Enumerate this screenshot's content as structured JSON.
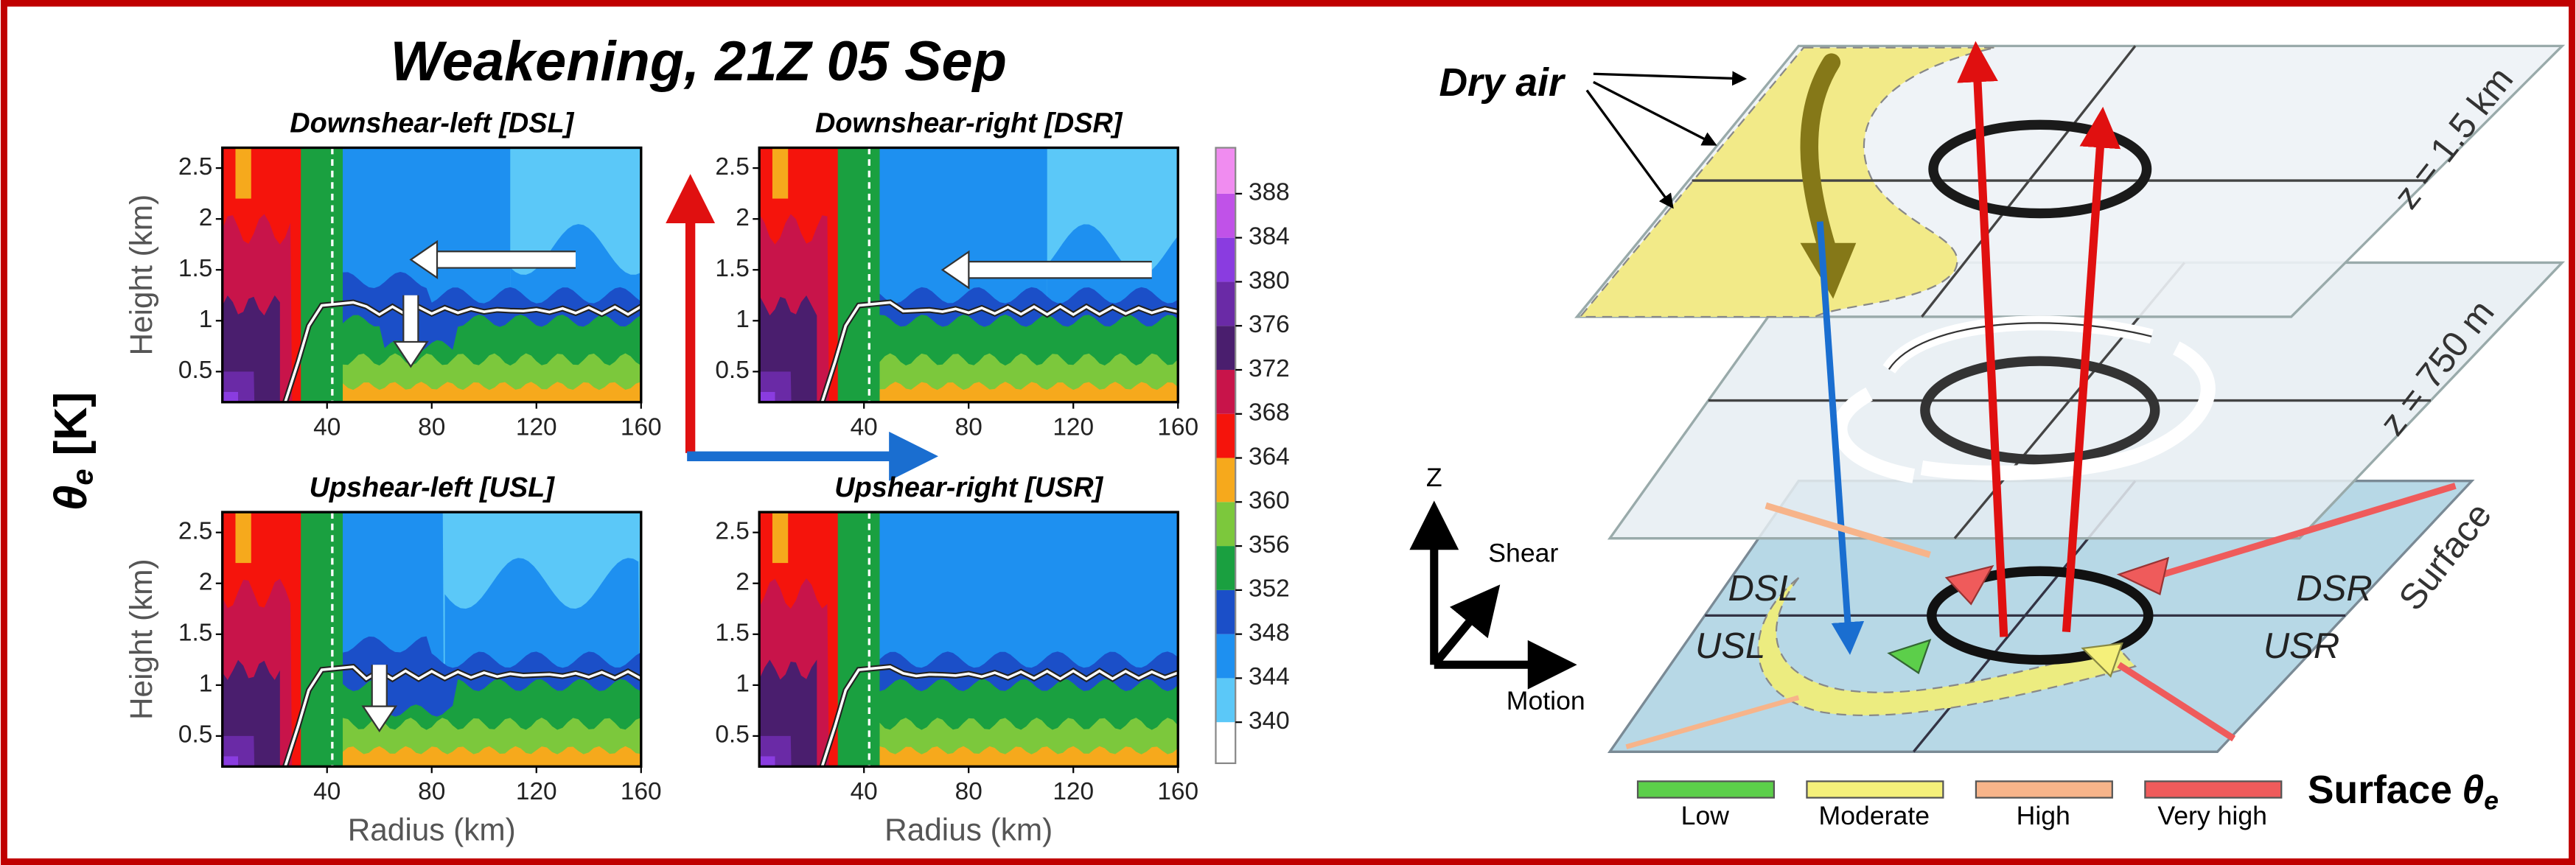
{
  "title": "Weakening, 21Z 05 Sep",
  "colorbar": {
    "label": {
      "symbol": "θ",
      "subscript": "e",
      "unit": "[K]"
    },
    "ticks": [
      340,
      344,
      348,
      352,
      356,
      360,
      364,
      368,
      372,
      376,
      380,
      384,
      388
    ],
    "colors": [
      "#ffffff",
      "#5bc8f8",
      "#1e90f0",
      "#1b4fc8",
      "#1aa040",
      "#7cc83c",
      "#f6a91c",
      "#f5140c",
      "#c8144a",
      "#4a1e6e",
      "#6a2aa6",
      "#8a3ce0",
      "#c052e8",
      "#f08cf0"
    ]
  },
  "axes": {
    "xlabel": "Radius (km)",
    "ylabel": "Height (km)",
    "xlim": [
      0,
      160
    ],
    "ylim": [
      0.2,
      2.7
    ],
    "xticks": [
      40,
      80,
      120,
      160
    ],
    "yticks": [
      0.5,
      1,
      1.5,
      2,
      2.5
    ]
  },
  "panels": [
    {
      "title": "Downshear-left [DSL]"
    },
    {
      "title": "Downshear-right [DSR]"
    },
    {
      "title": "Upshear-left [USL]"
    },
    {
      "title": "Upshear-right [USR]"
    }
  ],
  "diagram": {
    "dry_air": "Dry air",
    "levels": [
      "z = 1.5 km",
      "z = 750 m",
      "Surface"
    ],
    "quadrants": [
      "DSL",
      "DSR",
      "USL",
      "USR"
    ],
    "axes": {
      "z": "Z",
      "shear": "Shear",
      "motion": "Motion"
    },
    "legend": {
      "title": {
        "text": "Surface",
        "symbol": "θ",
        "subscript": "e"
      },
      "items": [
        {
          "label": "Low",
          "color": "#5ccf4a"
        },
        {
          "label": "Moderate",
          "color": "#f5f07a"
        },
        {
          "label": "High",
          "color": "#f7b48a"
        },
        {
          "label": "Very high",
          "color": "#ef5b5b"
        }
      ]
    }
  }
}
